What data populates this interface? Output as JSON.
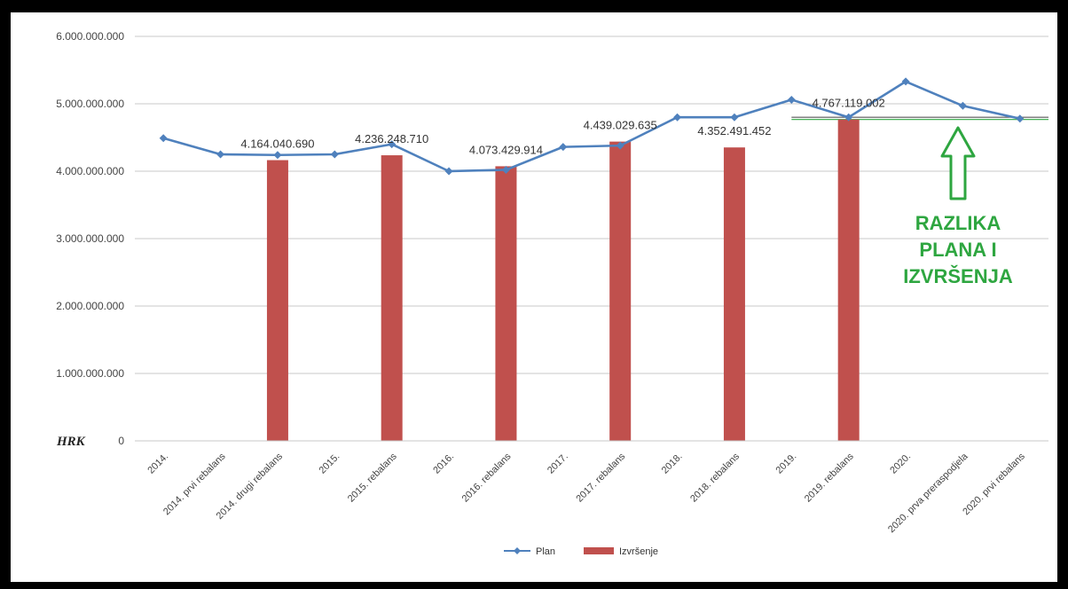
{
  "chart_data": {
    "type": "bar",
    "title": "",
    "xlabel": "",
    "ylabel": "",
    "unit_label": "HRK",
    "ylim": [
      0,
      6000000000
    ],
    "y_ticks": [
      {
        "value": 0,
        "label": "0"
      },
      {
        "value": 1000000000,
        "label": "1.000.000.000"
      },
      {
        "value": 2000000000,
        "label": "2.000.000.000"
      },
      {
        "value": 3000000000,
        "label": "3.000.000.000"
      },
      {
        "value": 4000000000,
        "label": "4.000.000.000"
      },
      {
        "value": 5000000000,
        "label": "5.000.000.000"
      },
      {
        "value": 6000000000,
        "label": "6.000.000.000"
      }
    ],
    "grid": true,
    "legend_position": "bottom",
    "categories": [
      "2014.",
      "2014. prvi rebalans",
      "2014. drugi rebalans",
      "2015.",
      "2015. rebalans",
      "2016.",
      "2016. rebalans",
      "2017.",
      "2017. rebalans",
      "2018.",
      "2018. rebalans",
      "2019.",
      "2019. rebalans",
      "2020.",
      "2020. prva preraspodjela",
      "2020. prvi rebalans"
    ],
    "series": [
      {
        "name": "Plan",
        "type": "line",
        "color": "#4f81bd",
        "values": [
          4490000000,
          4250000000,
          4240000000,
          4250000000,
          4400000000,
          4000000000,
          4020000000,
          4360000000,
          4380000000,
          4800000000,
          4800000000,
          5060000000,
          4800000000,
          5330000000,
          4970000000,
          4780000000
        ]
      },
      {
        "name": "Izvršenje",
        "type": "bar",
        "color": "#c0504d",
        "values": [
          null,
          null,
          4164040690,
          null,
          4236248710,
          null,
          4073429914,
          null,
          4439029635,
          null,
          4352491452,
          null,
          4767119002,
          null,
          null,
          null
        ],
        "data_labels": [
          null,
          null,
          "4.164.040.690",
          null,
          "4.236.248.710",
          null,
          "4.073.429.914",
          null,
          "4.439.029.635",
          null,
          "4.352.491.452",
          null,
          "4.767.119.002",
          null,
          null,
          null
        ]
      }
    ],
    "reference_lines": [
      {
        "value": 4800000000,
        "color": "#555555"
      },
      {
        "value": 4767119002,
        "color": "#2ea640"
      }
    ],
    "annotation": {
      "lines": [
        "RAZLIKA",
        "PLANA I",
        "IZVRŠENJA"
      ],
      "color": "#2ea640",
      "arrow_icon": "up-arrow-icon"
    }
  }
}
